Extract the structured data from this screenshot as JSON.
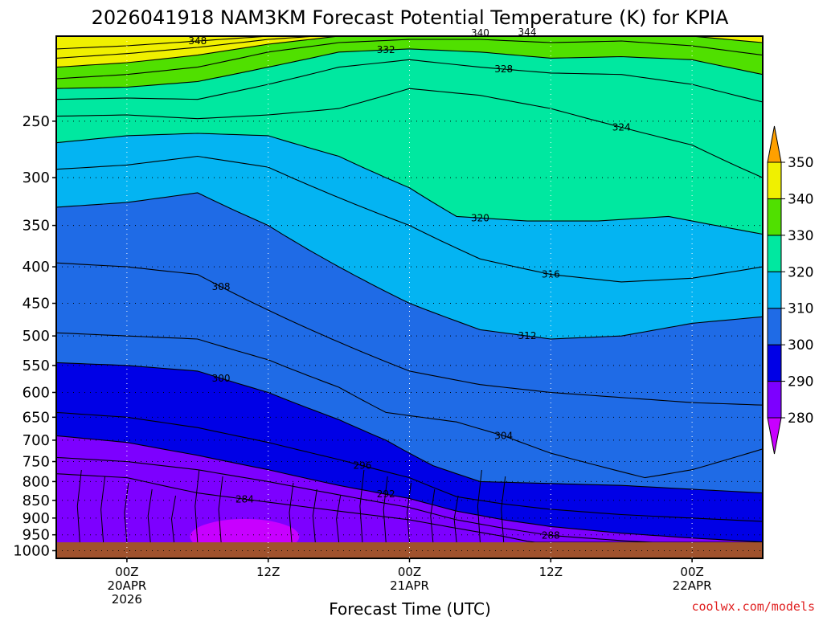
{
  "chart_data": {
    "type": "heatmap",
    "title": "2026041918 NAM3KM Forecast Potential Temperature (K) for KPIA",
    "xlabel": "Forecast Time (UTC)",
    "ylabel": "",
    "units": "K",
    "y_axis": {
      "scale": "log-pressure",
      "inverted": true,
      "range": [
        1025,
        190
      ],
      "ticks": [
        "250",
        "300",
        "350",
        "400",
        "450",
        "500",
        "550",
        "600",
        "650",
        "700",
        "750",
        "800",
        "850",
        "900",
        "950",
        "1000"
      ],
      "tick_values": [
        250,
        300,
        350,
        400,
        450,
        500,
        550,
        600,
        650,
        700,
        750,
        800,
        850,
        900,
        950,
        1000
      ]
    },
    "x_axis": {
      "range_hours": [
        -6,
        54
      ],
      "tick_hours": [
        0,
        12,
        24,
        36,
        48
      ],
      "tick_labels": [
        [
          "00Z",
          "20APR",
          "2026"
        ],
        [
          "12Z",
          "",
          ""
        ],
        [
          "00Z",
          "21APR",
          ""
        ],
        [
          "12Z",
          "",
          ""
        ],
        [
          "00Z",
          "22APR",
          ""
        ]
      ]
    },
    "color_levels": [
      "280",
      "290",
      "300",
      "310",
      "320",
      "330",
      "340",
      "350"
    ],
    "level_values": [
      280,
      290,
      300,
      310,
      320,
      330,
      340,
      350
    ],
    "band_colors": [
      "#c800ff",
      "#7d00ff",
      "#0000e6",
      "#1f6be6",
      "#04b4f2",
      "#00e8a0",
      "#50e000",
      "#f0f000",
      "#ffa000"
    ],
    "surface_color": "#a0522d",
    "contour_interval": 4,
    "isentropes": [
      {
        "theta": 284,
        "label": "284",
        "points": [
          [
            -6,
            780
          ],
          [
            0,
            790
          ],
          [
            6,
            830
          ],
          [
            12,
            855
          ],
          [
            18,
            880
          ],
          [
            24,
            905
          ],
          [
            28,
            930
          ],
          [
            32,
            955
          ],
          [
            36,
            985
          ],
          [
            40,
            1000
          ]
        ]
      },
      {
        "theta": 288,
        "label": "288",
        "points": [
          [
            -6,
            740
          ],
          [
            0,
            750
          ],
          [
            6,
            770
          ],
          [
            12,
            800
          ],
          [
            18,
            835
          ],
          [
            24,
            870
          ],
          [
            28,
            905
          ],
          [
            32,
            930
          ],
          [
            36,
            952
          ],
          [
            42,
            968
          ],
          [
            48,
            980
          ],
          [
            54,
            992
          ]
        ]
      },
      {
        "theta": 292,
        "label": "292",
        "points": [
          [
            -6,
            690
          ],
          [
            0,
            705
          ],
          [
            6,
            735
          ],
          [
            12,
            770
          ],
          [
            18,
            810
          ],
          [
            24,
            845
          ],
          [
            28,
            880
          ],
          [
            32,
            905
          ],
          [
            36,
            925
          ],
          [
            42,
            945
          ],
          [
            48,
            960
          ],
          [
            54,
            972
          ]
        ]
      },
      {
        "theta": 296,
        "label": "296",
        "points": [
          [
            -6,
            640
          ],
          [
            0,
            650
          ],
          [
            6,
            672
          ],
          [
            12,
            705
          ],
          [
            18,
            745
          ],
          [
            24,
            790
          ],
          [
            28,
            840
          ],
          [
            32,
            860
          ],
          [
            36,
            875
          ],
          [
            42,
            890
          ],
          [
            48,
            900
          ],
          [
            54,
            910
          ]
        ]
      },
      {
        "theta": 300,
        "label": "300",
        "points": [
          [
            -6,
            545
          ],
          [
            0,
            550
          ],
          [
            6,
            560
          ],
          [
            12,
            600
          ],
          [
            18,
            655
          ],
          [
            22,
            700
          ],
          [
            26,
            760
          ],
          [
            30,
            800
          ],
          [
            36,
            805
          ],
          [
            42,
            810
          ],
          [
            48,
            820
          ],
          [
            54,
            830
          ]
        ]
      },
      {
        "theta": 304,
        "label": "304",
        "points": [
          [
            -6,
            495
          ],
          [
            0,
            500
          ],
          [
            6,
            505
          ],
          [
            12,
            540
          ],
          [
            18,
            590
          ],
          [
            22,
            640
          ],
          [
            28,
            660
          ],
          [
            32,
            690
          ],
          [
            36,
            730
          ],
          [
            40,
            760
          ],
          [
            44,
            790
          ],
          [
            48,
            770
          ],
          [
            54,
            720
          ]
        ]
      },
      {
        "theta": 308,
        "label": "308",
        "points": [
          [
            -6,
            395
          ],
          [
            0,
            400
          ],
          [
            6,
            410
          ],
          [
            12,
            460
          ],
          [
            18,
            510
          ],
          [
            24,
            560
          ],
          [
            30,
            585
          ],
          [
            36,
            600
          ],
          [
            42,
            610
          ],
          [
            48,
            620
          ],
          [
            54,
            625
          ]
        ]
      },
      {
        "theta": 312,
        "label": "312",
        "points": [
          [
            -6,
            330
          ],
          [
            0,
            325
          ],
          [
            6,
            315
          ],
          [
            12,
            350
          ],
          [
            18,
            400
          ],
          [
            24,
            450
          ],
          [
            30,
            490
          ],
          [
            36,
            505
          ],
          [
            42,
            500
          ],
          [
            48,
            480
          ],
          [
            54,
            470
          ]
        ]
      },
      {
        "theta": 316,
        "label": "316",
        "points": [
          [
            -6,
            292
          ],
          [
            0,
            288
          ],
          [
            6,
            280
          ],
          [
            12,
            290
          ],
          [
            18,
            320
          ],
          [
            24,
            350
          ],
          [
            30,
            390
          ],
          [
            36,
            410
          ],
          [
            42,
            420
          ],
          [
            48,
            415
          ],
          [
            54,
            400
          ]
        ]
      },
      {
        "theta": 320,
        "label": "320",
        "points": [
          [
            -6,
            268
          ],
          [
            0,
            262
          ],
          [
            6,
            260
          ],
          [
            12,
            262
          ],
          [
            18,
            280
          ],
          [
            24,
            310
          ],
          [
            28,
            340
          ],
          [
            34,
            345
          ],
          [
            40,
            345
          ],
          [
            46,
            340
          ],
          [
            52,
            355
          ],
          [
            54,
            360
          ]
        ]
      },
      {
        "theta": 324,
        "label": "324",
        "points": [
          [
            -6,
            246
          ],
          [
            0,
            245
          ],
          [
            6,
            248
          ],
          [
            12,
            245
          ],
          [
            18,
            240
          ],
          [
            24,
            225
          ],
          [
            30,
            230
          ],
          [
            36,
            240
          ],
          [
            42,
            255
          ],
          [
            48,
            270
          ],
          [
            54,
            300
          ]
        ]
      },
      {
        "theta": 328,
        "label": "328",
        "points": [
          [
            -6,
            233
          ],
          [
            0,
            232
          ],
          [
            6,
            233
          ],
          [
            12,
            222
          ],
          [
            18,
            210
          ],
          [
            24,
            205
          ],
          [
            30,
            210
          ],
          [
            36,
            214
          ],
          [
            42,
            215
          ],
          [
            48,
            222
          ],
          [
            54,
            235
          ]
        ]
      },
      {
        "theta": 332,
        "label": "332",
        "points": [
          [
            -6,
            225
          ],
          [
            0,
            224
          ],
          [
            6,
            220
          ],
          [
            12,
            210
          ],
          [
            18,
            200
          ],
          [
            24,
            198
          ],
          [
            30,
            200
          ],
          [
            36,
            204
          ],
          [
            42,
            203
          ],
          [
            48,
            205
          ],
          [
            54,
            215
          ]
        ]
      },
      {
        "theta": 336,
        "label": "",
        "points": [
          [
            -6,
            218
          ],
          [
            0,
            215
          ],
          [
            6,
            210
          ],
          [
            12,
            200
          ],
          [
            18,
            194
          ],
          [
            24,
            192
          ],
          [
            30,
            192
          ],
          [
            36,
            194
          ],
          [
            42,
            193
          ],
          [
            48,
            196
          ],
          [
            54,
            202
          ]
        ]
      },
      {
        "theta": 340,
        "label": "340",
        "points": [
          [
            -6,
            210
          ],
          [
            0,
            207
          ],
          [
            6,
            202
          ],
          [
            12,
            195
          ],
          [
            18,
            190
          ],
          [
            24,
            189
          ],
          [
            30,
            188
          ],
          [
            36,
            189
          ],
          [
            42,
            188
          ],
          [
            48,
            190
          ],
          [
            54,
            194
          ]
        ]
      },
      {
        "theta": 344,
        "label": "344",
        "points": [
          [
            -6,
            204
          ],
          [
            0,
            201
          ],
          [
            6,
            197
          ],
          [
            12,
            192
          ],
          [
            18,
            189
          ],
          [
            24,
            188
          ],
          [
            30,
            187
          ],
          [
            36,
            188
          ],
          [
            42,
            187
          ],
          [
            48,
            188
          ],
          [
            54,
            190
          ]
        ]
      },
      {
        "theta": 348,
        "label": "348",
        "points": [
          [
            -6,
            198
          ],
          [
            0,
            196
          ],
          [
            6,
            193
          ],
          [
            12,
            190
          ],
          [
            18,
            188
          ],
          [
            24,
            187
          ],
          [
            30,
            186
          ],
          [
            36,
            187
          ],
          [
            42,
            186
          ],
          [
            48,
            187
          ],
          [
            54,
            188
          ]
        ]
      }
    ]
  },
  "credit": "coolwx.com/models"
}
